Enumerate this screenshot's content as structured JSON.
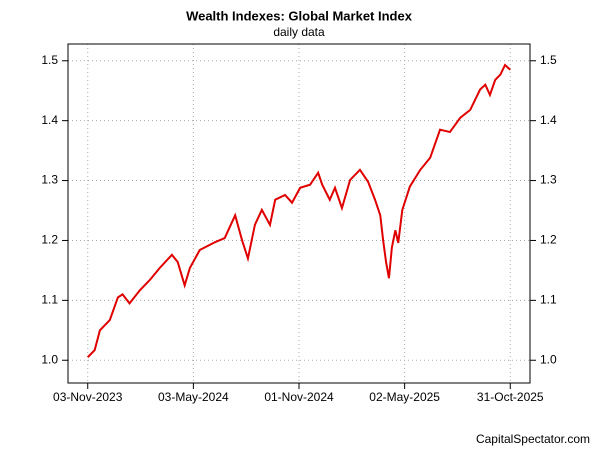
{
  "chart_data": {
    "type": "line",
    "title": "Wealth Indexes: Global Market Index",
    "subtitle": "daily data",
    "source": "CapitalSpectator.com",
    "x": [
      "2023-11-03",
      "2023-11-15",
      "2023-11-24",
      "2023-12-11",
      "2023-12-25",
      "2024-01-02",
      "2024-01-14",
      "2024-02-01",
      "2024-02-18",
      "2024-03-06",
      "2024-03-27",
      "2024-04-06",
      "2024-04-18",
      "2024-04-27",
      "2024-05-14",
      "2024-06-09",
      "2024-06-26",
      "2024-07-14",
      "2024-07-26",
      "2024-08-05",
      "2024-08-17",
      "2024-08-29",
      "2024-09-12",
      "2024-09-21",
      "2024-10-08",
      "2024-10-20",
      "2024-11-03",
      "2024-11-20",
      "2024-12-04",
      "2024-12-11",
      "2024-12-24",
      "2025-01-02",
      "2025-01-14",
      "2025-01-28",
      "2025-02-14",
      "2025-02-28",
      "2025-03-12",
      "2025-03-21",
      "2025-03-26",
      "2025-03-31",
      "2025-04-05",
      "2025-04-10",
      "2025-04-16",
      "2025-04-21",
      "2025-04-28",
      "2025-05-11",
      "2025-05-29",
      "2025-06-15",
      "2025-07-02",
      "2025-07-19",
      "2025-08-06",
      "2025-08-23",
      "2025-09-09",
      "2025-09-18",
      "2025-09-26",
      "2025-10-05",
      "2025-10-14",
      "2025-10-22",
      "2025-10-31"
    ],
    "series": [
      {
        "name": "Global Market Index",
        "color": "#e00000",
        "values": [
          1.005,
          1.017,
          1.05,
          1.067,
          1.105,
          1.11,
          1.095,
          1.117,
          1.134,
          1.154,
          1.176,
          1.164,
          1.125,
          1.154,
          1.184,
          1.197,
          1.204,
          1.242,
          1.2,
          1.17,
          1.226,
          1.251,
          1.226,
          1.268,
          1.276,
          1.263,
          1.288,
          1.293,
          1.313,
          1.293,
          1.268,
          1.288,
          1.254,
          1.301,
          1.318,
          1.298,
          1.268,
          1.242,
          1.2,
          1.164,
          1.137,
          1.188,
          1.217,
          1.196,
          1.251,
          1.29,
          1.318,
          1.338,
          1.385,
          1.381,
          1.405,
          1.418,
          1.452,
          1.46,
          1.443,
          1.468,
          1.477,
          1.493,
          1.485
        ]
      }
    ],
    "xlim": [
      "2023-09-30",
      "2025-12-04"
    ],
    "xticks": [
      {
        "value": "2023-11-03",
        "label": "03-Nov-2023"
      },
      {
        "value": "2024-05-03",
        "label": "03-May-2024"
      },
      {
        "value": "2024-11-01",
        "label": "01-Nov-2024"
      },
      {
        "value": "2025-05-02",
        "label": "02-May-2025"
      },
      {
        "value": "2025-10-31",
        "label": "31-Oct-2025"
      }
    ],
    "ylim": [
      0.962,
      1.528
    ],
    "yticks": [
      {
        "value": 1.0,
        "label": "1.0"
      },
      1.1,
      1.2,
      1.3,
      1.4,
      1.5
    ],
    "grid": true
  }
}
